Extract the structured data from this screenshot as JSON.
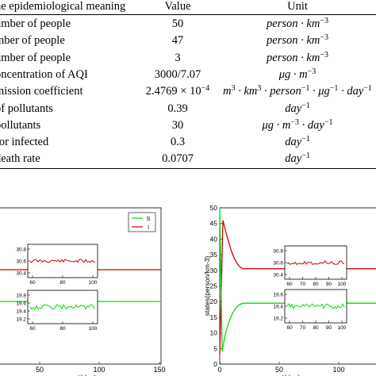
{
  "table": {
    "header": {
      "meaning": "he epidemiological meaning",
      "value": "Value",
      "unit": "Unit"
    },
    "rows": [
      {
        "meaning": "umber of people",
        "value": "50",
        "unit_html": "person · km<sup>−3</sup>"
      },
      {
        "meaning": "mber of people",
        "value": "47",
        "unit_html": "person · km<sup>−3</sup>"
      },
      {
        "meaning": "umber of people",
        "value": "3",
        "unit_html": "person · km<sup>−3</sup>"
      },
      {
        "meaning": "oncentration of AQI",
        "value": "3000/7.07",
        "unit_html": "μg · m<sup>−3</sup>"
      },
      {
        "meaning": "mission coefficient",
        "value_html": "2.4769 × 10<sup>−4</sup>",
        "unit_html": "m<sup>3</sup> · km<sup>3</sup> · person<sup>−1</sup> · μg<sup>−1</sup> · day<sup>−1</sup>"
      },
      {
        "meaning": "of pollutants",
        "value": "0.39",
        "unit_html": "day<sup>−1</sup>"
      },
      {
        "meaning": "pollutants",
        "value": "30",
        "unit_html": "μg · m<sup>−3</sup> · day<sup>−1</sup>"
      },
      {
        "meaning": "for infected",
        "value": "0.3",
        "unit_html": "day<sup>−1</sup>"
      },
      {
        "meaning": "death rate",
        "value": "0.0707",
        "unit_html": "day<sup>−1</sup>"
      }
    ]
  },
  "colors": {
    "S": "#00dd00",
    "I": "#cc0000"
  },
  "chart_data": [
    {
      "type": "line",
      "id": "left-main",
      "xlabel": "t(day)",
      "x_ticks": [
        "50",
        "100",
        "150"
      ],
      "legend": [
        "S",
        "I"
      ],
      "legend_position": "top-right",
      "series": [
        {
          "name": "S",
          "level": 19.5
        },
        {
          "name": "I",
          "level": 30.5
        }
      ]
    },
    {
      "type": "line",
      "id": "left-inset-I",
      "x_ticks": [
        "60",
        "80",
        "100"
      ],
      "y_ticks": [
        "30.8",
        "30.6",
        "30.4"
      ]
    },
    {
      "type": "line",
      "id": "left-inset-S",
      "x_ticks": [
        "60",
        "80",
        "100"
      ],
      "y_ticks": [
        "19.8",
        "19.6",
        "19.4",
        "19.2"
      ]
    },
    {
      "type": "line",
      "id": "right-main",
      "xlabel": "t(day)",
      "ylabel": "states(person/km-3)",
      "x_ticks": [
        "0",
        "50",
        "100"
      ],
      "y_ticks": [
        "0",
        "5",
        "10",
        "15",
        "20",
        "25",
        "30",
        "35",
        "40",
        "45",
        "50"
      ],
      "ylim": [
        0,
        50
      ],
      "series": [
        {
          "name": "S",
          "level": 19.5,
          "initial": 50
        },
        {
          "name": "I",
          "level": 30.5,
          "initial": 3
        }
      ]
    },
    {
      "type": "line",
      "id": "right-inset-I",
      "x_ticks": [
        "60",
        "70",
        "80",
        "90",
        "100"
      ],
      "y_ticks": [
        "30.8",
        "30.6",
        "30.4"
      ]
    },
    {
      "type": "line",
      "id": "right-inset-S",
      "x_ticks": [
        "60",
        "70",
        "80",
        "90",
        "100"
      ],
      "y_ticks": [
        "19.6",
        "19.4",
        "19.2"
      ]
    }
  ]
}
